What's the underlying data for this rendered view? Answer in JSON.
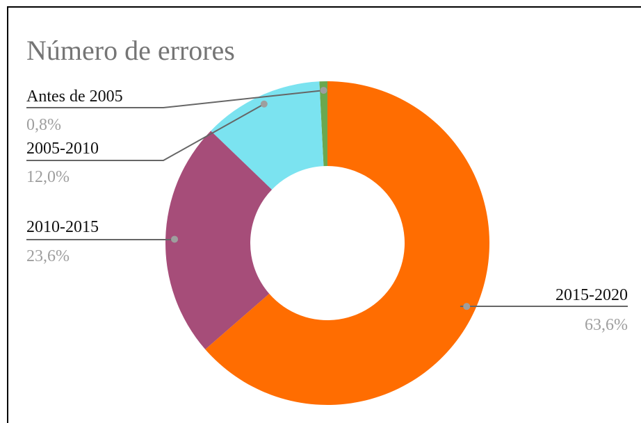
{
  "chart_data": {
    "type": "donut",
    "title": "Número de errores",
    "categories": [
      "Antes de 2005",
      "2005-2010",
      "2010-2015",
      "2015-2020"
    ],
    "values": [
      0.8,
      12.0,
      23.6,
      63.6
    ],
    "value_labels": [
      "0,8%",
      "12,0%",
      "23,6%",
      "63,6%"
    ],
    "colors": [
      "#6aa84f",
      "#7be3f0",
      "#a64d79",
      "#ff6d01"
    ]
  }
}
